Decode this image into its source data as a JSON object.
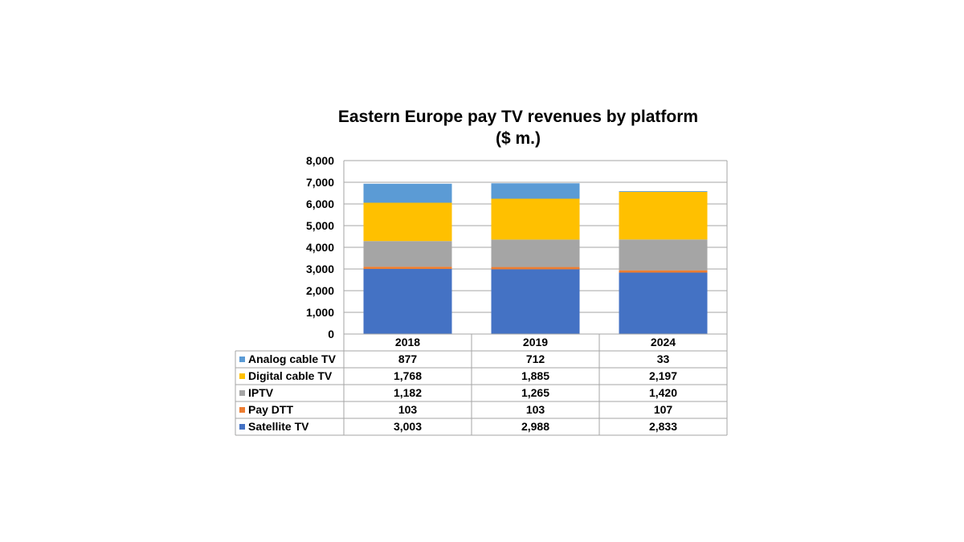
{
  "chart_data": {
    "type": "bar",
    "stacked": true,
    "title": "Eastern Europe pay TV revenues by platform",
    "subtitle": "($ m.)",
    "categories": [
      "2018",
      "2019",
      "2024"
    ],
    "ylim": [
      0,
      8000
    ],
    "yticks": [
      "0",
      "1,000",
      "2,000",
      "3,000",
      "4,000",
      "5,000",
      "6,000",
      "7,000",
      "8,000"
    ],
    "grid": true,
    "legend_placement": "data-table",
    "series": [
      {
        "name": "Satellite TV",
        "color": "#4472C4",
        "values": [
          3003,
          2988,
          2833
        ],
        "labels": [
          "3,003",
          "2,988",
          "2,833"
        ]
      },
      {
        "name": "Pay DTT",
        "color": "#ED7D31",
        "values": [
          103,
          103,
          107
        ],
        "labels": [
          "103",
          "103",
          "107"
        ]
      },
      {
        "name": "IPTV",
        "color": "#A5A5A5",
        "values": [
          1182,
          1265,
          1420
        ],
        "labels": [
          "1,182",
          "1,265",
          "1,420"
        ]
      },
      {
        "name": "Digital cable TV",
        "color": "#FFC000",
        "values": [
          1768,
          1885,
          2197
        ],
        "labels": [
          "1,768",
          "1,885",
          "2,197"
        ]
      },
      {
        "name": "Analog cable TV",
        "color": "#5B9BD5",
        "values": [
          877,
          712,
          33
        ],
        "labels": [
          "877",
          "712",
          "33"
        ]
      }
    ],
    "table_row_order": [
      "Analog cable TV",
      "Digital cable TV",
      "IPTV",
      "Pay DTT",
      "Satellite TV"
    ]
  }
}
